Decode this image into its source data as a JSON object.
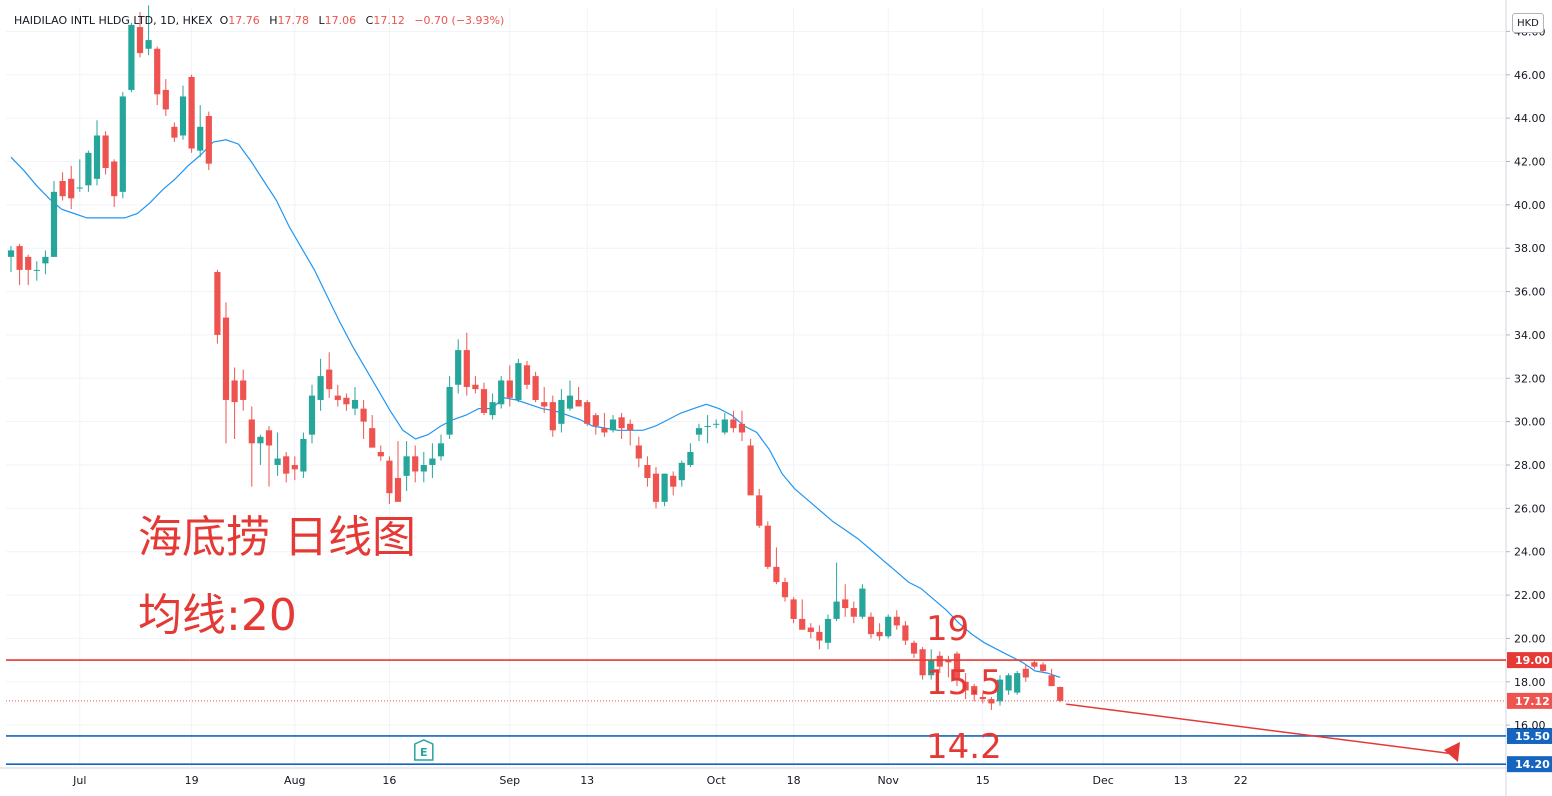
{
  "header": {
    "symbol": "HAIDILAO INTL HLDG LTD, 1D, HKEX",
    "o_label": "O",
    "o_value": "17.76",
    "h_label": "H",
    "h_value": "17.78",
    "l_label": "L",
    "l_value": "17.06",
    "c_label": "C",
    "c_value": "17.12",
    "change": "−0.70 (−3.93%)",
    "currency": "HKD"
  },
  "annotations": {
    "title": "海底捞 日线图",
    "ma_label": "均线:20",
    "level_19": "19",
    "level_155": "15.5",
    "level_142": "14.2"
  },
  "colors": {
    "up": "#26a69a",
    "down": "#ef5350",
    "ma": "#2196f3",
    "red_line": "#e53935",
    "blue_line": "#1565c0",
    "annotation": "#e53935"
  },
  "chart_data": {
    "type": "candlestick",
    "y_axis": {
      "min": 14.0,
      "max": 49.2,
      "ticks": [
        "48.00",
        "46.00",
        "44.00",
        "42.00",
        "40.00",
        "38.00",
        "36.00",
        "34.00",
        "32.00",
        "30.00",
        "28.00",
        "26.00",
        "24.00",
        "22.00",
        "20.00",
        "18.00",
        "16.00"
      ]
    },
    "x_axis": {
      "labels": [
        {
          "label": "Jul",
          "bar": 8
        },
        {
          "label": "19",
          "bar": 21
        },
        {
          "label": "Aug",
          "bar": 33
        },
        {
          "label": "16",
          "bar": 44
        },
        {
          "label": "Sep",
          "bar": 58
        },
        {
          "label": "13",
          "bar": 67
        },
        {
          "label": "Oct",
          "bar": 82
        },
        {
          "label": "18",
          "bar": 91
        },
        {
          "label": "Nov",
          "bar": 102
        },
        {
          "label": "15",
          "bar": 113
        },
        {
          "label": "Dec",
          "bar": 127
        },
        {
          "label": "13",
          "bar": 136
        },
        {
          "label": "22",
          "bar": 143
        }
      ]
    },
    "ohlc": [
      [
        37.6,
        38.1,
        36.9,
        37.9
      ],
      [
        38.1,
        38.2,
        36.3,
        37.0
      ],
      [
        37.6,
        37.7,
        36.3,
        37.0
      ],
      [
        37.0,
        37.4,
        36.5,
        37.0
      ],
      [
        37.3,
        37.9,
        36.8,
        37.6
      ],
      [
        37.6,
        41.1,
        37.6,
        40.6
      ],
      [
        41.1,
        41.5,
        40.2,
        40.4
      ],
      [
        41.2,
        41.8,
        39.8,
        40.3
      ],
      [
        40.8,
        42.1,
        40.6,
        40.8
      ],
      [
        40.9,
        42.5,
        40.6,
        42.4
      ],
      [
        41.2,
        43.9,
        40.9,
        43.2
      ],
      [
        43.2,
        43.4,
        41.4,
        41.7
      ],
      [
        42.0,
        42.1,
        39.9,
        40.4
      ],
      [
        40.6,
        45.2,
        40.3,
        45.0
      ],
      [
        45.3,
        48.4,
        45.2,
        48.3
      ],
      [
        48.2,
        48.9,
        46.8,
        47.0
      ],
      [
        47.2,
        49.2,
        46.9,
        47.6
      ],
      [
        47.2,
        47.3,
        44.6,
        45.1
      ],
      [
        45.3,
        45.8,
        44.1,
        44.4
      ],
      [
        43.6,
        43.8,
        42.9,
        43.1
      ],
      [
        43.2,
        45.5,
        43.0,
        45.0
      ],
      [
        45.9,
        46.0,
        42.4,
        42.6
      ],
      [
        42.5,
        44.6,
        42.2,
        43.6
      ],
      [
        44.1,
        44.3,
        41.6,
        41.9
      ],
      [
        36.9,
        37.0,
        33.6,
        34.0
      ],
      [
        34.8,
        35.5,
        29.0,
        31.0
      ],
      [
        31.9,
        32.5,
        29.2,
        30.9
      ],
      [
        31.9,
        32.4,
        30.5,
        31.0
      ],
      [
        30.1,
        30.7,
        27.0,
        29.0
      ],
      [
        29.0,
        29.4,
        28.0,
        29.3
      ],
      [
        29.6,
        29.8,
        27.0,
        28.9
      ],
      [
        28.0,
        29.5,
        27.5,
        28.3
      ],
      [
        28.4,
        28.6,
        27.2,
        27.6
      ],
      [
        28.0,
        28.4,
        27.3,
        27.8
      ],
      [
        27.7,
        29.5,
        27.4,
        29.2
      ],
      [
        29.4,
        31.7,
        29.0,
        31.2
      ],
      [
        31.0,
        32.9,
        30.5,
        32.1
      ],
      [
        32.4,
        33.2,
        31.1,
        31.5
      ],
      [
        31.2,
        31.7,
        30.7,
        31.0
      ],
      [
        31.1,
        31.3,
        30.5,
        30.8
      ],
      [
        30.6,
        31.6,
        30.3,
        31.0
      ],
      [
        30.6,
        31.0,
        29.2,
        30.0
      ],
      [
        29.7,
        30.3,
        29.0,
        28.8
      ],
      [
        28.6,
        28.9,
        28.2,
        28.4
      ],
      [
        28.2,
        28.4,
        26.2,
        26.7
      ],
      [
        27.4,
        29.1,
        26.4,
        26.3
      ],
      [
        27.5,
        29.1,
        26.8,
        28.4
      ],
      [
        28.4,
        28.9,
        27.2,
        27.7
      ],
      [
        27.7,
        28.6,
        27.2,
        28.0
      ],
      [
        28.0,
        29.0,
        27.4,
        28.3
      ],
      [
        28.4,
        29.4,
        28.2,
        29.0
      ],
      [
        29.4,
        32.1,
        29.2,
        31.6
      ],
      [
        31.7,
        33.8,
        31.3,
        33.3
      ],
      [
        33.3,
        34.1,
        31.2,
        31.6
      ],
      [
        31.7,
        32.1,
        31.3,
        31.5
      ],
      [
        31.5,
        31.8,
        30.3,
        30.4
      ],
      [
        30.3,
        31.3,
        30.1,
        30.9
      ],
      [
        30.8,
        32.1,
        30.6,
        31.9
      ],
      [
        31.9,
        32.6,
        30.7,
        31.1
      ],
      [
        31.0,
        32.9,
        30.9,
        32.7
      ],
      [
        32.6,
        32.8,
        31.5,
        31.7
      ],
      [
        32.1,
        32.3,
        30.9,
        31.0
      ],
      [
        30.9,
        31.6,
        30.4,
        30.7
      ],
      [
        30.9,
        31.2,
        29.3,
        29.6
      ],
      [
        29.9,
        31.5,
        29.5,
        31.0
      ],
      [
        30.6,
        31.9,
        30.5,
        31.2
      ],
      [
        31.0,
        31.6,
        30.7,
        30.7
      ],
      [
        30.9,
        31.0,
        29.8,
        29.9
      ],
      [
        30.3,
        30.4,
        29.4,
        29.8
      ],
      [
        29.7,
        30.4,
        29.3,
        29.5
      ],
      [
        29.6,
        30.3,
        29.5,
        30.1
      ],
      [
        30.2,
        30.4,
        29.2,
        29.7
      ],
      [
        29.9,
        30.1,
        28.9,
        29.6
      ],
      [
        28.9,
        29.3,
        27.9,
        28.3
      ],
      [
        28.0,
        28.4,
        27.0,
        27.4
      ],
      [
        27.6,
        27.9,
        26.0,
        26.3
      ],
      [
        26.3,
        27.6,
        26.1,
        27.6
      ],
      [
        27.5,
        27.7,
        26.6,
        27.0
      ],
      [
        27.3,
        28.2,
        27.0,
        28.1
      ],
      [
        28.0,
        29.0,
        27.9,
        28.6
      ],
      [
        29.4,
        29.9,
        29.1,
        29.7
      ],
      [
        29.8,
        30.3,
        29.0,
        29.8
      ],
      [
        29.9,
        30.1,
        29.7,
        29.9
      ],
      [
        29.5,
        30.4,
        29.4,
        30.1
      ],
      [
        30.1,
        30.5,
        29.5,
        29.7
      ],
      [
        29.9,
        30.5,
        29.1,
        29.5
      ],
      [
        28.9,
        29.2,
        26.7,
        26.6
      ],
      [
        26.6,
        26.9,
        25.1,
        25.2
      ],
      [
        25.2,
        25.4,
        23.2,
        23.3
      ],
      [
        23.3,
        24.2,
        22.5,
        22.6
      ],
      [
        22.6,
        22.8,
        21.7,
        21.9
      ],
      [
        21.8,
        21.9,
        20.7,
        20.9
      ],
      [
        20.9,
        21.8,
        20.6,
        20.4
      ],
      [
        20.5,
        20.7,
        20.0,
        20.3
      ],
      [
        20.3,
        20.6,
        19.5,
        19.9
      ],
      [
        19.8,
        21.1,
        19.5,
        20.9
      ],
      [
        20.9,
        23.5,
        20.8,
        21.7
      ],
      [
        21.8,
        22.5,
        21.0,
        21.4
      ],
      [
        21.4,
        21.7,
        20.7,
        21.0
      ],
      [
        21.0,
        22.5,
        20.9,
        22.3
      ],
      [
        21.0,
        21.2,
        20.0,
        20.2
      ],
      [
        20.3,
        20.7,
        19.9,
        20.1
      ],
      [
        20.1,
        21.1,
        20.0,
        21.0
      ],
      [
        21.0,
        21.3,
        20.4,
        20.6
      ],
      [
        20.6,
        20.8,
        19.7,
        19.9
      ],
      [
        19.8,
        19.9,
        19.1,
        19.3
      ],
      [
        19.5,
        19.6,
        18.1,
        18.3
      ],
      [
        18.3,
        19.5,
        18.1,
        19.0
      ],
      [
        19.2,
        19.4,
        18.4,
        18.7
      ],
      [
        19.0,
        19.2,
        18.2,
        18.9
      ],
      [
        19.3,
        19.4,
        17.8,
        18.1
      ],
      [
        18.0,
        18.4,
        17.2,
        17.6
      ],
      [
        17.8,
        17.9,
        17.1,
        17.4
      ],
      [
        17.3,
        17.5,
        17.0,
        17.2
      ],
      [
        17.2,
        17.3,
        16.7,
        17.0
      ],
      [
        17.1,
        18.3,
        16.9,
        18.1
      ],
      [
        17.6,
        18.4,
        17.4,
        18.3
      ],
      [
        17.5,
        18.5,
        17.4,
        18.4
      ],
      [
        18.6,
        18.8,
        18.0,
        18.2
      ],
      [
        18.9,
        19.0,
        18.6,
        18.7
      ],
      [
        18.8,
        18.9,
        18.4,
        18.5
      ],
      [
        18.3,
        18.6,
        17.9,
        17.8
      ],
      [
        17.76,
        17.78,
        17.06,
        17.12
      ]
    ],
    "ma20": [
      42.2,
      41.6,
      40.9,
      40.3,
      39.8,
      39.6,
      39.4,
      39.4,
      39.4,
      39.4,
      39.6,
      40.1,
      40.7,
      41.2,
      41.8,
      42.3,
      42.9,
      43.0,
      42.8,
      42.0,
      41.1,
      40.2,
      39.0,
      38.0,
      37.0,
      35.8,
      34.6,
      33.5,
      32.5,
      31.5,
      30.5,
      29.6,
      29.2,
      29.4,
      29.8,
      30.1,
      30.3,
      30.6,
      30.6,
      31.1,
      31.0,
      30.8,
      30.6,
      30.5,
      30.3,
      30.1,
      29.8,
      29.7,
      29.6,
      29.6,
      29.6,
      29.8,
      30.1,
      30.4,
      30.6,
      30.8,
      30.6,
      30.3,
      29.8,
      29.5,
      28.7,
      27.6,
      26.9,
      26.4,
      25.9,
      25.4,
      25.0,
      24.6,
      24.1,
      23.6,
      23.1,
      22.6,
      22.3,
      21.8,
      21.3,
      20.7,
      20.2,
      19.8,
      19.5,
      19.2,
      18.9,
      18.5,
      18.4,
      18.2
    ],
    "ma20_start_bar": 0,
    "hlines": [
      {
        "value": 19.0,
        "label": "19.00",
        "color": "#e53935"
      },
      {
        "value": 15.5,
        "label": "15.50",
        "color": "#1565c0"
      },
      {
        "value": 14.2,
        "label": "14.20",
        "color": "#1565c0"
      }
    ],
    "last_price": {
      "value": 17.12,
      "label": "17.12"
    },
    "earnings_marker": {
      "bar": 48,
      "label": "E"
    }
  }
}
